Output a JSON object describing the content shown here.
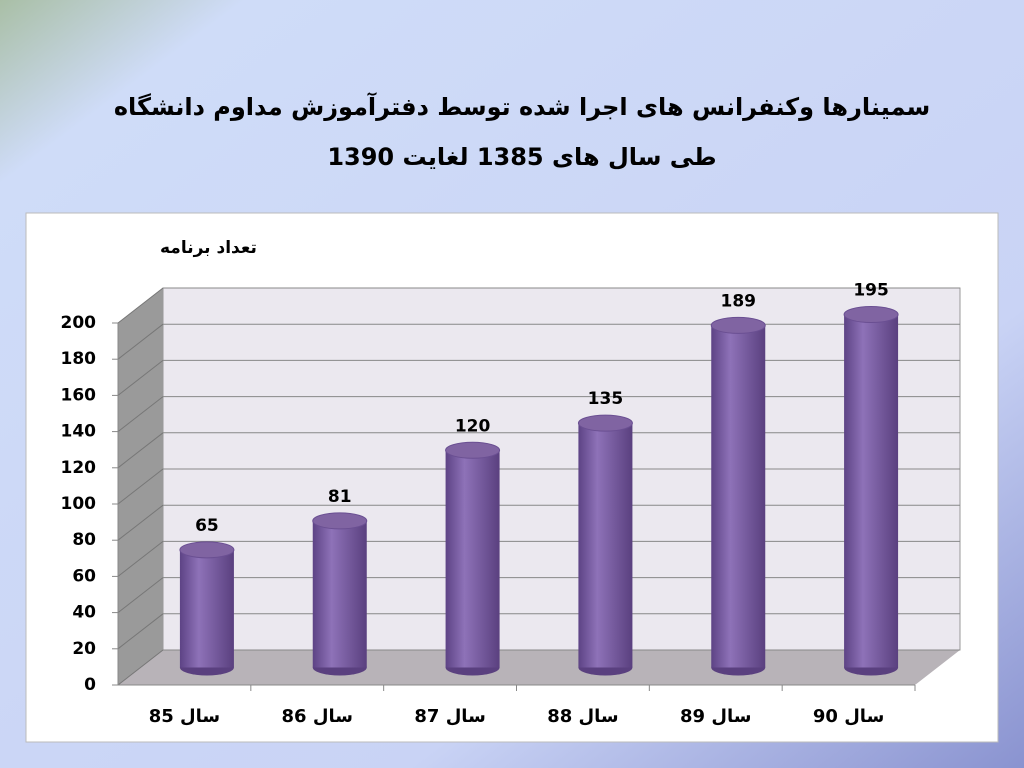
{
  "chart_data": {
    "type": "bar",
    "title": "سمینارها وکنفرانس های اجرا شده توسط دفترآموزش مداوم دانشگاه",
    "subtitle": "طی سال های 1385 لغایت 1390",
    "y_label": "تعداد برنامه",
    "categories": [
      "سال 85",
      "سال 86",
      "سال 87",
      "سال 88",
      "سال 89",
      "سال 90"
    ],
    "values": [
      65,
      81,
      120,
      135,
      189,
      195
    ],
    "color": "#8064a2",
    "ylim": [
      0,
      200
    ],
    "yticks": [
      0,
      20,
      40,
      60,
      80,
      100,
      120,
      140,
      160,
      180,
      200
    ],
    "grid": true
  }
}
